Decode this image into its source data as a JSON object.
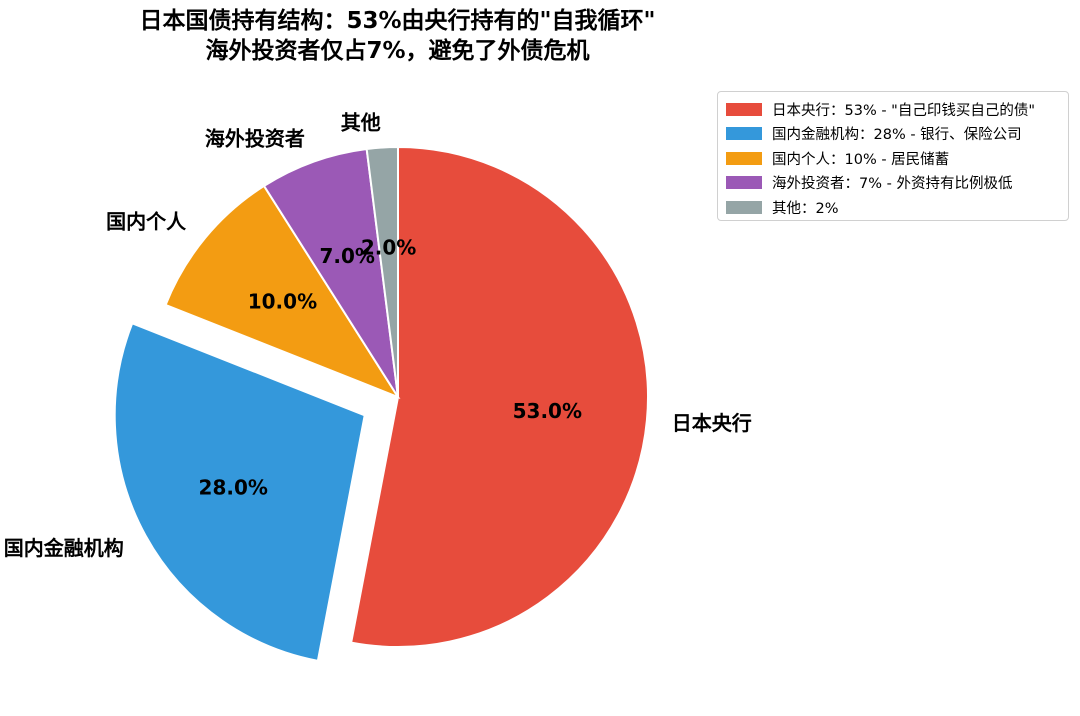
{
  "chart_data": {
    "type": "pie",
    "title": "日本国债持有结构：53%由央行持有的\"自我循环\"",
    "subtitle": "海外投资者仅占7%，避免了外债危机",
    "slices": [
      {
        "label": "日本央行",
        "value": 53,
        "pct_label": "53.0%",
        "color": "#e74c3c",
        "explode": false,
        "legend": "日本央行：53% - \"自己印钱买自己的债\""
      },
      {
        "label": "国内金融机构",
        "value": 28,
        "pct_label": "28.0%",
        "color": "#3498db",
        "explode": true,
        "legend": "国内金融机构：28% - 银行、保险公司"
      },
      {
        "label": "国内个人",
        "value": 10,
        "pct_label": "10.0%",
        "color": "#f39c12",
        "explode": false,
        "legend": "国内个人：10% - 居民储蓄"
      },
      {
        "label": "海外投资者",
        "value": 7,
        "pct_label": "7.0%",
        "color": "#9b59b6",
        "explode": false,
        "legend": "海外投资者：7% - 外资持有比例极低"
      },
      {
        "label": "其他",
        "value": 2,
        "pct_label": "2.0%",
        "color": "#95a5a6",
        "explode": false,
        "legend": "其他：2%"
      }
    ],
    "start_angle": 90,
    "direction": "clockwise",
    "legend_position": "upper-right"
  }
}
